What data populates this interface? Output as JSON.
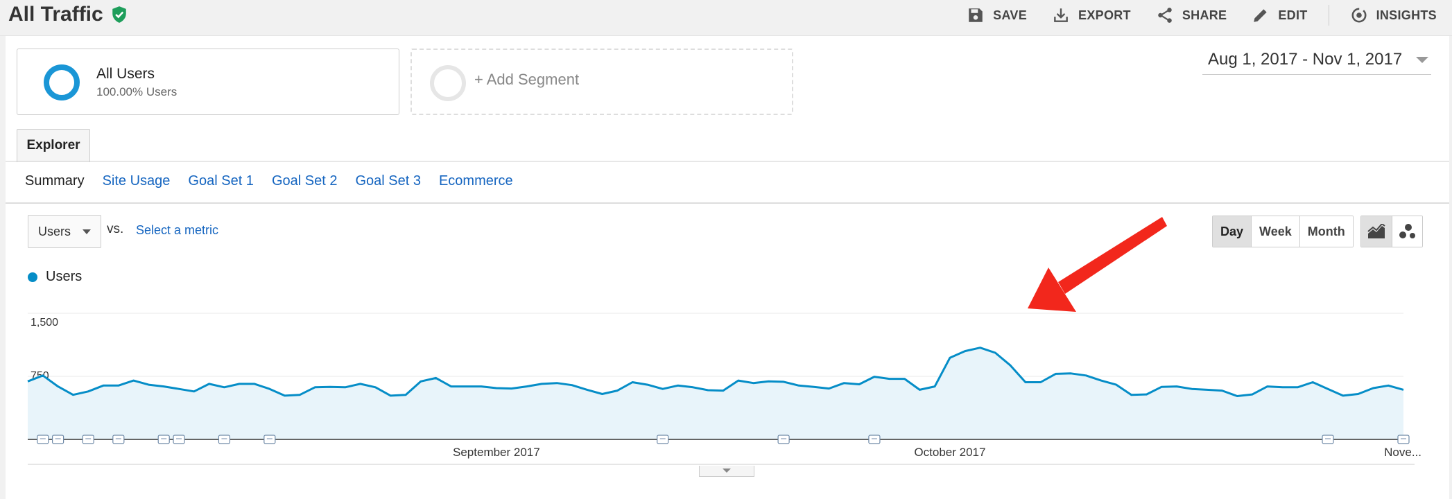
{
  "header": {
    "title": "All Traffic",
    "toolbar": [
      {
        "id": "save",
        "label": "SAVE",
        "icon": "floppy-disk-icon"
      },
      {
        "id": "export",
        "label": "EXPORT",
        "icon": "download-icon"
      },
      {
        "id": "share",
        "label": "SHARE",
        "icon": "share-icon"
      },
      {
        "id": "edit",
        "label": "EDIT",
        "icon": "pencil-icon"
      },
      {
        "id": "insights",
        "label": "INSIGHTS",
        "icon": "insights-icon"
      }
    ]
  },
  "segments": {
    "all_users": {
      "name": "All Users",
      "sub": "100.00% Users"
    },
    "add_segment": "+ Add Segment"
  },
  "date_range": "Aug 1, 2017 - Nov 1, 2017",
  "tabs": {
    "explorer": "Explorer"
  },
  "subnav": [
    "Summary",
    "Site Usage",
    "Goal Set 1",
    "Goal Set 2",
    "Goal Set 3",
    "Ecommerce"
  ],
  "metric": {
    "selected": "Users",
    "vs": "vs.",
    "select_metric": "Select a metric"
  },
  "period": [
    "Day",
    "Week",
    "Month"
  ],
  "legend": {
    "series": "Users"
  },
  "colors": {
    "series": "#058dc7",
    "area": "#e8f4fa",
    "arrow": "#f2271c",
    "verified": "#1e9e5b"
  },
  "chart_data": {
    "type": "area",
    "series": [
      {
        "name": "Users",
        "values": [
          690,
          760,
          630,
          530,
          570,
          640,
          640,
          700,
          650,
          630,
          600,
          570,
          660,
          620,
          660,
          660,
          600,
          520,
          530,
          620,
          625,
          620,
          660,
          620,
          520,
          530,
          690,
          730,
          630,
          630,
          630,
          610,
          605,
          630,
          660,
          670,
          645,
          590,
          540,
          580,
          680,
          650,
          600,
          640,
          620,
          585,
          580,
          700,
          670,
          690,
          685,
          640,
          625,
          605,
          670,
          655,
          745,
          720,
          720,
          590,
          630,
          970,
          1050,
          1090,
          1030,
          880,
          680,
          680,
          780,
          785,
          760,
          700,
          650,
          530,
          535,
          625,
          630,
          600,
          590,
          580,
          515,
          535,
          630,
          620,
          620,
          680,
          600,
          520,
          540,
          610,
          640,
          590
        ]
      }
    ],
    "x_tick_labels": [
      "September 2017",
      "October 2017",
      "Nove..."
    ],
    "y_tick_labels": [
      "1,500",
      "750"
    ],
    "ylim": [
      0,
      1500
    ],
    "grid": true
  }
}
